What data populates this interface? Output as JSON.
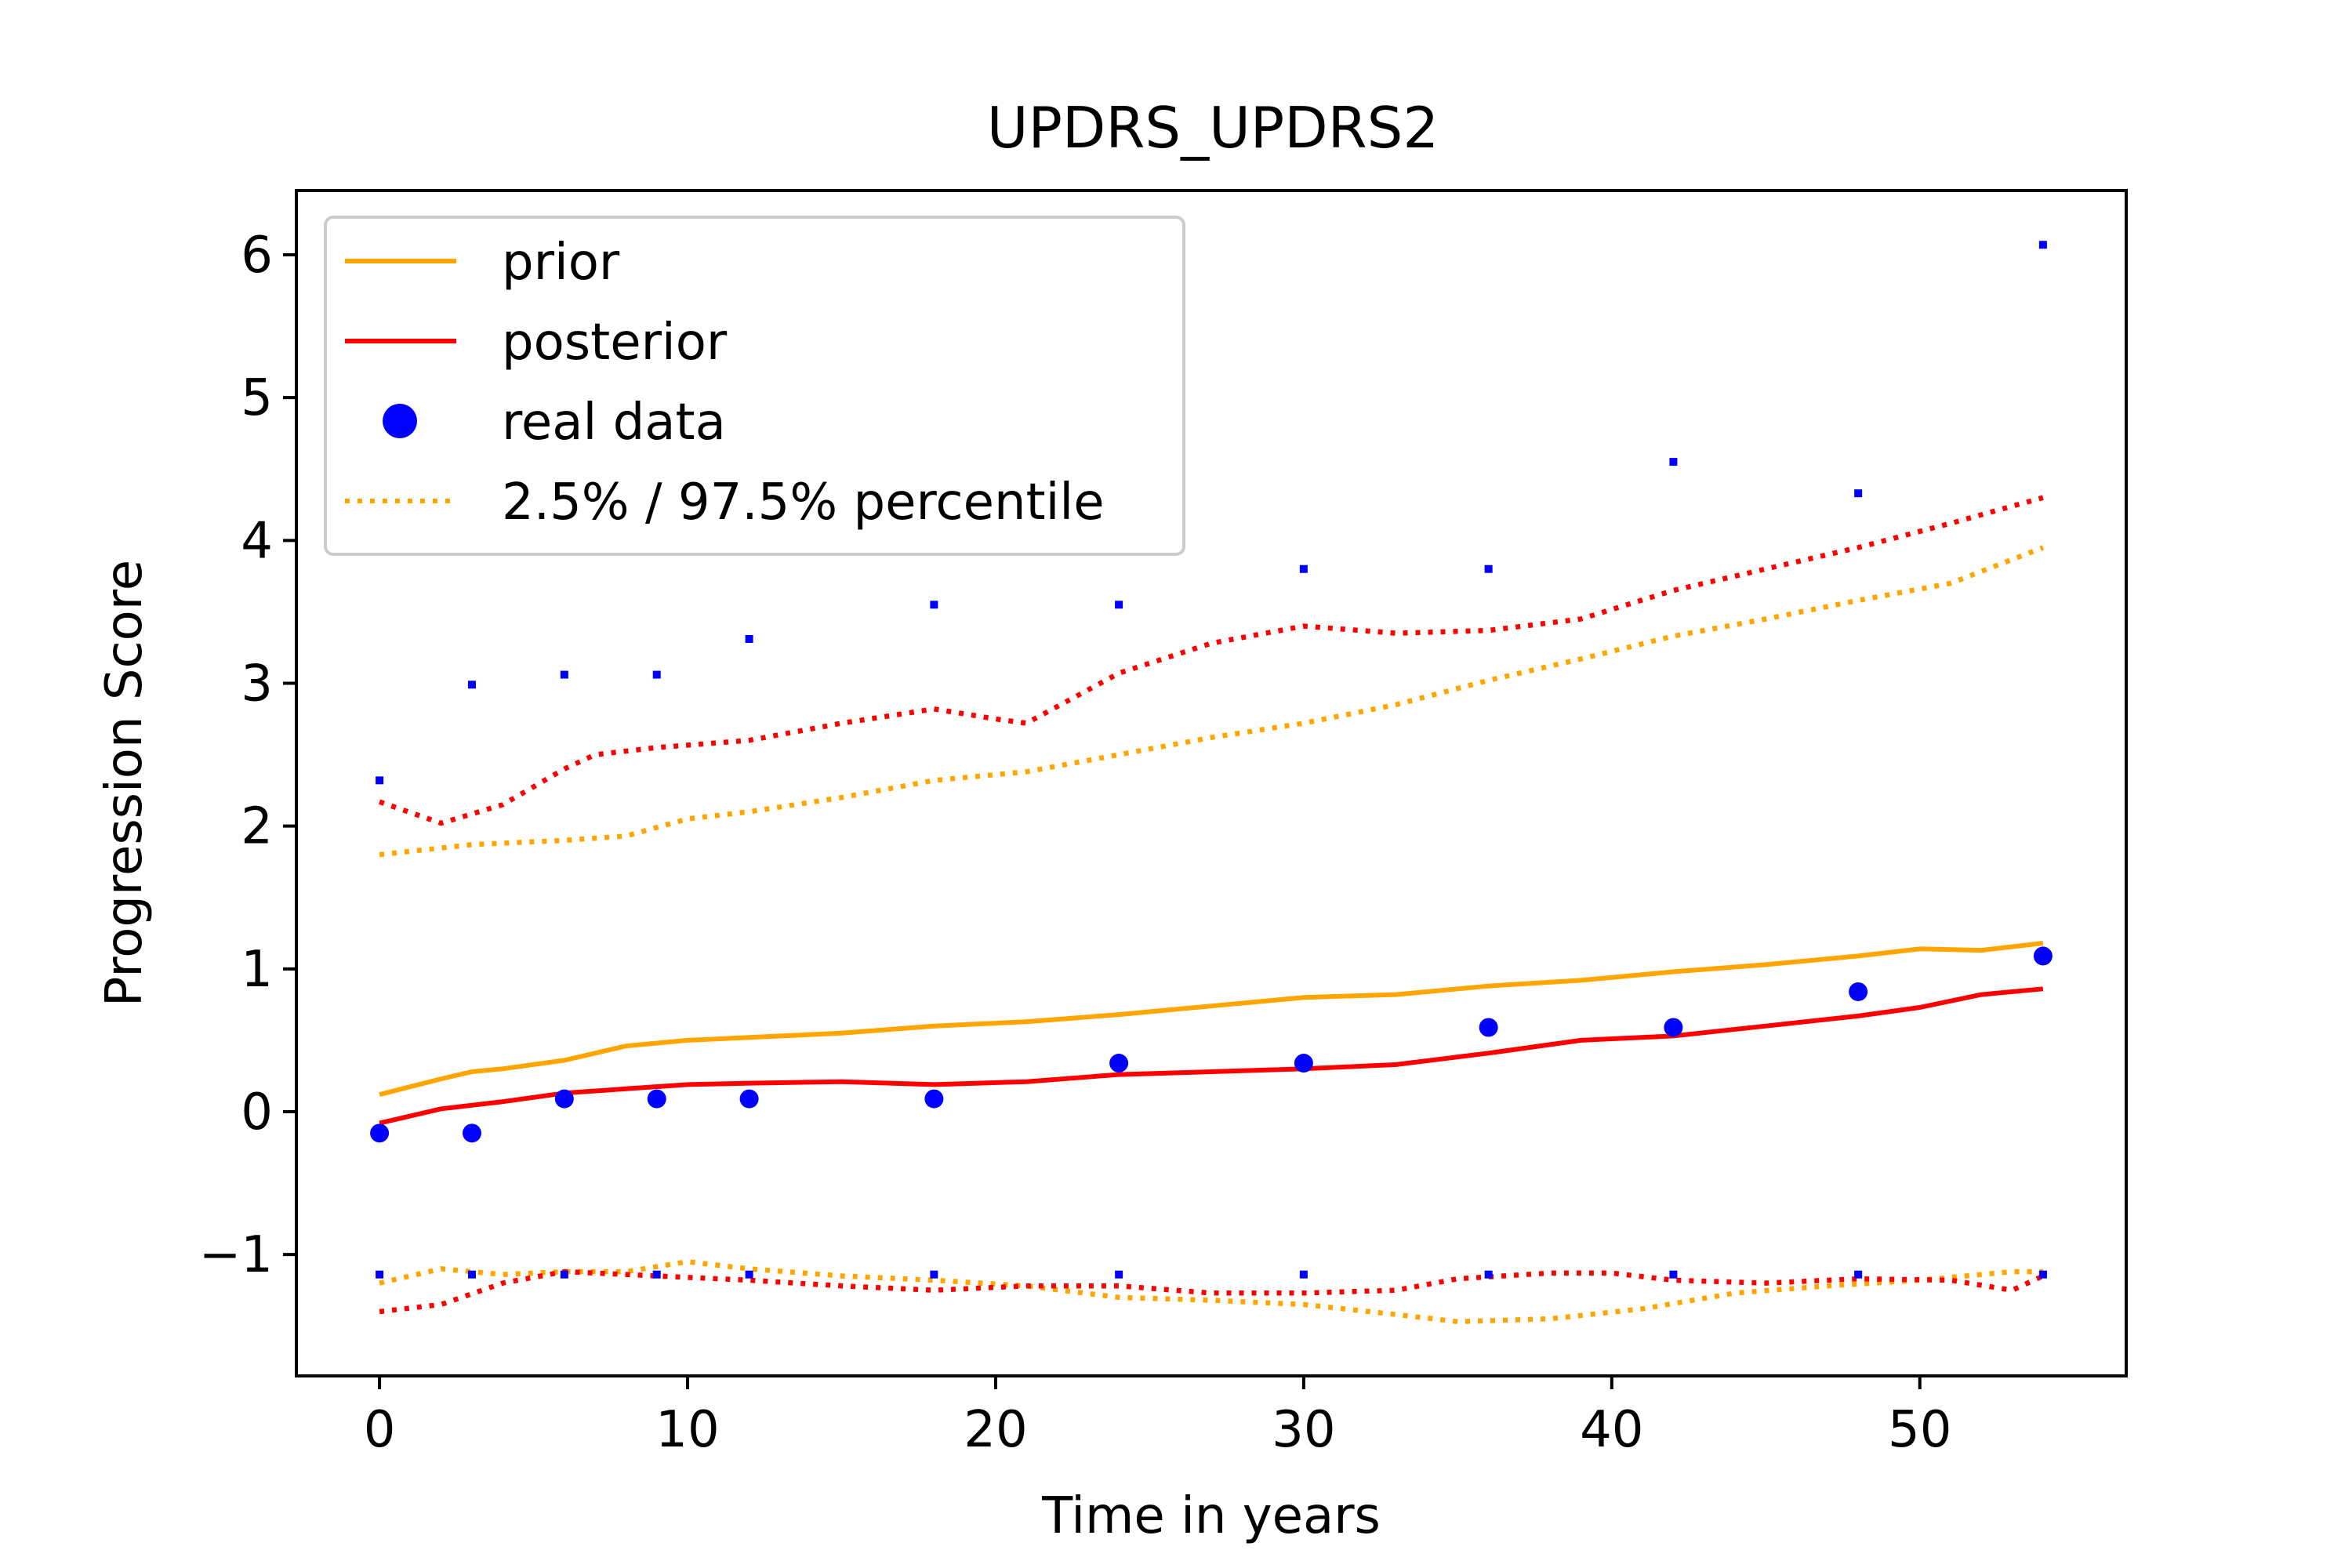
{
  "chart_data": {
    "type": "line",
    "title": "UPDRS_UPDRS2",
    "xlabel": "Time in years",
    "ylabel": "Progression Score",
    "xlim": [
      -2.7,
      56.7
    ],
    "ylim": [
      -1.85,
      6.45
    ],
    "xticks": [
      0,
      10,
      20,
      30,
      40,
      50
    ],
    "yticks": [
      -1,
      0,
      1,
      2,
      3,
      4,
      5,
      6
    ],
    "ytick_labels": [
      "−1",
      "0",
      "1",
      "2",
      "3",
      "4",
      "5",
      "6"
    ],
    "grid": false,
    "legend_position": "top-left",
    "legend": [
      {
        "label": "prior",
        "kind": "solid-line",
        "color": "#FFA500"
      },
      {
        "label": "posterior",
        "kind": "solid-line",
        "color": "#FF0000"
      },
      {
        "label": "real data",
        "kind": "marker",
        "color": "#0000FF"
      },
      {
        "label": "2.5% / 97.5% percentile",
        "kind": "dotted-line",
        "color": "#FFA500"
      }
    ],
    "series": [
      {
        "name": "prior",
        "role": "mean",
        "color": "#FFA500",
        "style": "solid",
        "x": [
          0,
          2,
          3,
          4,
          6,
          8,
          10,
          12,
          15,
          18,
          21,
          24,
          27,
          30,
          33,
          36,
          39,
          42,
          45,
          48,
          50,
          52,
          54
        ],
        "y": [
          0.12,
          0.23,
          0.28,
          0.3,
          0.36,
          0.46,
          0.5,
          0.52,
          0.55,
          0.6,
          0.63,
          0.68,
          0.74,
          0.8,
          0.82,
          0.88,
          0.92,
          0.98,
          1.03,
          1.09,
          1.14,
          1.13,
          1.18
        ]
      },
      {
        "name": "posterior",
        "role": "mean",
        "color": "#FF0000",
        "style": "solid",
        "x": [
          0,
          2,
          4,
          6,
          8,
          10,
          12,
          15,
          18,
          21,
          24,
          27,
          30,
          33,
          36,
          39,
          42,
          45,
          48,
          50,
          52,
          54
        ],
        "y": [
          -0.08,
          0.02,
          0.07,
          0.13,
          0.16,
          0.19,
          0.2,
          0.21,
          0.19,
          0.21,
          0.26,
          0.28,
          0.3,
          0.33,
          0.41,
          0.5,
          0.53,
          0.6,
          0.67,
          0.73,
          0.82,
          0.86
        ]
      },
      {
        "name": "prior",
        "role": "97.5% percentile",
        "color": "#FFA500",
        "style": "dotted",
        "x": [
          0,
          3,
          6,
          8,
          10,
          12,
          15,
          18,
          21,
          24,
          27,
          30,
          33,
          36,
          39,
          42,
          45,
          48,
          51,
          54
        ],
        "y": [
          1.8,
          1.87,
          1.9,
          1.93,
          2.05,
          2.1,
          2.2,
          2.32,
          2.38,
          2.5,
          2.62,
          2.72,
          2.85,
          3.02,
          3.17,
          3.33,
          3.45,
          3.58,
          3.7,
          3.95
        ]
      },
      {
        "name": "posterior",
        "role": "97.5% percentile",
        "color": "#FF0000",
        "style": "dotted",
        "x": [
          0,
          2,
          4,
          6,
          7,
          9,
          12,
          15,
          18,
          20,
          21,
          24,
          27,
          30,
          33,
          36,
          39,
          42,
          45,
          48,
          51,
          54
        ],
        "y": [
          2.17,
          2.02,
          2.15,
          2.4,
          2.5,
          2.55,
          2.6,
          2.72,
          2.82,
          2.75,
          2.72,
          3.07,
          3.28,
          3.4,
          3.35,
          3.37,
          3.45,
          3.65,
          3.8,
          3.95,
          4.12,
          4.3
        ]
      },
      {
        "name": "prior",
        "role": "2.5% percentile",
        "color": "#FFA500",
        "style": "dotted",
        "x": [
          0,
          2,
          4,
          6,
          8,
          10,
          12,
          15,
          18,
          21,
          24,
          27,
          30,
          33,
          35,
          38,
          41,
          44,
          47,
          50,
          53,
          54
        ],
        "y": [
          -1.2,
          -1.1,
          -1.14,
          -1.12,
          -1.12,
          -1.05,
          -1.1,
          -1.15,
          -1.18,
          -1.22,
          -1.3,
          -1.32,
          -1.35,
          -1.42,
          -1.47,
          -1.45,
          -1.38,
          -1.27,
          -1.22,
          -1.18,
          -1.12,
          -1.12
        ]
      },
      {
        "name": "posterior",
        "role": "2.5% percentile",
        "color": "#FF0000",
        "style": "dotted",
        "x": [
          0,
          2,
          4,
          6,
          9,
          12,
          15,
          18,
          21,
          24,
          27,
          30,
          33,
          35,
          38,
          40,
          42,
          45,
          48,
          51,
          53,
          54
        ],
        "y": [
          -1.4,
          -1.35,
          -1.2,
          -1.12,
          -1.15,
          -1.18,
          -1.22,
          -1.25,
          -1.22,
          -1.22,
          -1.27,
          -1.27,
          -1.25,
          -1.17,
          -1.13,
          -1.13,
          -1.18,
          -1.2,
          -1.17,
          -1.18,
          -1.25,
          -1.15
        ]
      },
      {
        "name": "real data",
        "role": "observations",
        "color": "#0000FF",
        "style": "marker",
        "x": [
          0,
          3,
          6,
          9,
          12,
          18,
          24,
          30,
          36,
          42,
          48,
          54
        ],
        "y": [
          -0.15,
          -0.15,
          0.09,
          0.09,
          0.09,
          0.09,
          0.34,
          0.34,
          0.59,
          0.59,
          0.84,
          1.09
        ]
      },
      {
        "name": "real data",
        "role": "97.5% percentile",
        "color": "#0000FF",
        "style": "small-marker",
        "x": [
          0,
          3,
          6,
          9,
          12,
          18,
          24,
          30,
          36,
          42,
          48,
          54
        ],
        "y": [
          2.32,
          2.99,
          3.06,
          3.06,
          3.31,
          3.55,
          3.55,
          3.8,
          3.8,
          4.55,
          4.33,
          6.07
        ]
      },
      {
        "name": "real data",
        "role": "2.5% percentile",
        "color": "#0000FF",
        "style": "small-marker",
        "x": [
          0,
          3,
          6,
          9,
          12,
          18,
          24,
          30,
          36,
          42,
          48,
          54
        ],
        "y": [
          -1.14,
          -1.14,
          -1.14,
          -1.14,
          -1.14,
          -1.14,
          -1.14,
          -1.14,
          -1.14,
          -1.14,
          -1.14,
          -1.14
        ]
      }
    ]
  }
}
